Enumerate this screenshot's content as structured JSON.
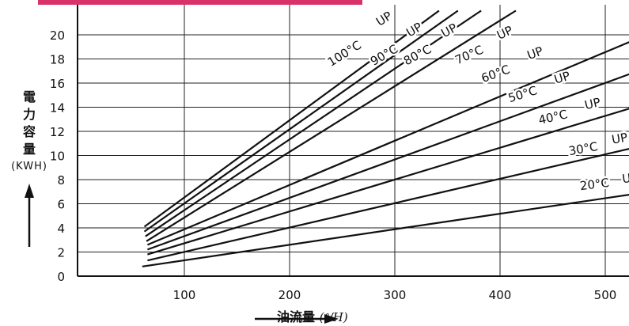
{
  "chart_data": {
    "type": "line",
    "title": "",
    "ylabel_chars": [
      "電",
      "力",
      "容",
      "量"
    ],
    "ylabel_unit": "(KWH)",
    "xlabel": "油流量",
    "xlabel_unit": "(ℓ/H)",
    "xlim": [
      50,
      550
    ],
    "ylim": [
      0,
      21
    ],
    "x_ticks": [
      100,
      200,
      300,
      400,
      500
    ],
    "y_ticks": [
      0,
      2,
      4,
      6,
      8,
      10,
      12,
      14,
      16,
      18,
      20
    ],
    "grid": true,
    "series": [
      {
        "name": "100°C UP",
        "label_degree": "100°C",
        "label_up": "UP",
        "points": [
          [
            62,
            4.1
          ],
          [
            342,
            22
          ]
        ]
      },
      {
        "name": "90°C UP",
        "label_degree": "90°C",
        "label_up": "UP",
        "points": [
          [
            62,
            3.7
          ],
          [
            360,
            22
          ]
        ]
      },
      {
        "name": "80°C UP",
        "label_degree": "80°C",
        "label_up": "UP",
        "points": [
          [
            63,
            3.3
          ],
          [
            382,
            22
          ]
        ]
      },
      {
        "name": "70°C UP",
        "label_degree": "70°C",
        "label_up": "UP",
        "points": [
          [
            64,
            2.9
          ],
          [
            415,
            22
          ]
        ]
      },
      {
        "name": "60°C UP",
        "label_degree": "60°C",
        "label_up": "UP",
        "points": [
          [
            65,
            2.6
          ],
          [
            550,
            20.4
          ]
        ]
      },
      {
        "name": "50°C UP",
        "label_degree": "50°C",
        "label_up": "UP",
        "points": [
          [
            65,
            2.2
          ],
          [
            550,
            17.6
          ]
        ]
      },
      {
        "name": "40°C UP",
        "label_degree": "40°C",
        "label_up": "UP",
        "points": [
          [
            65,
            1.8
          ],
          [
            550,
            14.6
          ]
        ]
      },
      {
        "name": "30°C UP",
        "label_degree": "30°C",
        "label_up": "UP",
        "points": [
          [
            65,
            1.3
          ],
          [
            550,
            11.1
          ]
        ]
      },
      {
        "name": "20°C UP",
        "label_degree": "20°C",
        "label_up": "UP",
        "points": [
          [
            60,
            0.8
          ],
          [
            550,
            7.1
          ]
        ]
      }
    ]
  },
  "banner_text": "",
  "colors": {
    "line": "#111111",
    "grid": "#222222",
    "banner": "#d8326a"
  }
}
